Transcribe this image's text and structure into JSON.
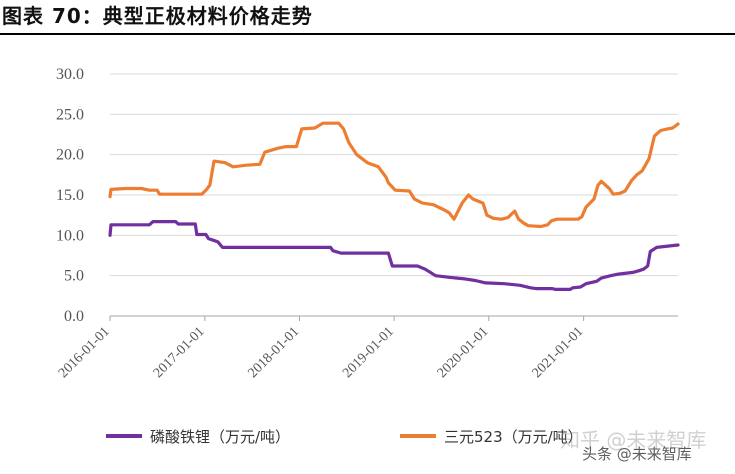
{
  "figure": {
    "title": "图表 70：典型正极材料价格走势"
  },
  "watermark": {
    "line1": "知乎 @未来智库",
    "line2": "头条 @未来智库"
  },
  "chart_data": {
    "type": "line",
    "title": "图表 70：典型正极材料价格走势",
    "xlabel": "",
    "ylabel": "",
    "x_type": "date",
    "xlim": [
      "2016-01-01",
      "2021-12-31"
    ],
    "ylim": [
      0,
      30
    ],
    "y_ticks": [
      "0.0",
      "5.0",
      "10.0",
      "15.0",
      "20.0",
      "25.0",
      "30.0"
    ],
    "x_ticks": [
      "2016-01-01",
      "2017-01-01",
      "2018-01-01",
      "2019-01-01",
      "2020-01-01",
      "2021-01-01"
    ],
    "grid": "horizontal",
    "legend": "bottom",
    "series": [
      {
        "name": "磷酸铁锂（万元/吨）",
        "color": "#7030a0",
        "points": [
          [
            "2016-01-01",
            10.0
          ],
          [
            "2016-01-05",
            11.3
          ],
          [
            "2016-06-01",
            11.3
          ],
          [
            "2016-06-15",
            11.7
          ],
          [
            "2016-09-10",
            11.7
          ],
          [
            "2016-09-20",
            11.4
          ],
          [
            "2016-11-25",
            11.4
          ],
          [
            "2016-12-01",
            10.1
          ],
          [
            "2017-01-05",
            10.1
          ],
          [
            "2017-01-15",
            9.6
          ],
          [
            "2017-02-20",
            9.2
          ],
          [
            "2017-03-10",
            8.5
          ],
          [
            "2018-05-01",
            8.5
          ],
          [
            "2018-05-10",
            8.1
          ],
          [
            "2018-06-10",
            7.8
          ],
          [
            "2018-12-10",
            7.8
          ],
          [
            "2018-12-25",
            6.2
          ],
          [
            "2019-04-01",
            6.2
          ],
          [
            "2019-05-01",
            5.8
          ],
          [
            "2019-06-10",
            5.0
          ],
          [
            "2019-08-01",
            4.8
          ],
          [
            "2019-09-01",
            4.7
          ],
          [
            "2019-10-01",
            4.6
          ],
          [
            "2019-11-10",
            4.4
          ],
          [
            "2019-12-20",
            4.1
          ],
          [
            "2020-03-01",
            4.0
          ],
          [
            "2020-05-01",
            3.8
          ],
          [
            "2020-06-10",
            3.5
          ],
          [
            "2020-07-01",
            3.4
          ],
          [
            "2020-09-01",
            3.4
          ],
          [
            "2020-09-15",
            3.3
          ],
          [
            "2020-11-10",
            3.3
          ],
          [
            "2020-11-20",
            3.5
          ],
          [
            "2020-12-20",
            3.6
          ],
          [
            "2021-01-10",
            4.0
          ],
          [
            "2021-02-20",
            4.3
          ],
          [
            "2021-03-10",
            4.7
          ],
          [
            "2021-04-15",
            5.0
          ],
          [
            "2021-05-15",
            5.2
          ],
          [
            "2021-07-10",
            5.4
          ],
          [
            "2021-08-01",
            5.6
          ],
          [
            "2021-08-20",
            5.8
          ],
          [
            "2021-09-05",
            6.2
          ],
          [
            "2021-09-15",
            8.0
          ],
          [
            "2021-10-10",
            8.5
          ],
          [
            "2021-12-31",
            8.8
          ]
        ]
      },
      {
        "name": "三元523（万元/吨）",
        "color": "#ed7d31",
        "points": [
          [
            "2016-01-01",
            14.8
          ],
          [
            "2016-01-05",
            15.7
          ],
          [
            "2016-03-01",
            15.8
          ],
          [
            "2016-05-01",
            15.8
          ],
          [
            "2016-06-01",
            15.6
          ],
          [
            "2016-07-01",
            15.6
          ],
          [
            "2016-07-10",
            15.1
          ],
          [
            "2016-12-20",
            15.1
          ],
          [
            "2017-01-05",
            15.6
          ],
          [
            "2017-01-20",
            16.2
          ],
          [
            "2017-02-05",
            19.2
          ],
          [
            "2017-03-20",
            19.0
          ],
          [
            "2017-04-20",
            18.5
          ],
          [
            "2017-06-10",
            18.7
          ],
          [
            "2017-08-01",
            18.8
          ],
          [
            "2017-08-20",
            20.3
          ],
          [
            "2017-10-10",
            20.8
          ],
          [
            "2017-11-10",
            21.0
          ],
          [
            "2017-12-20",
            21.0
          ],
          [
            "2018-01-10",
            23.2
          ],
          [
            "2018-03-01",
            23.3
          ],
          [
            "2018-04-01",
            23.9
          ],
          [
            "2018-06-01",
            23.9
          ],
          [
            "2018-06-20",
            23.2
          ],
          [
            "2018-07-10",
            21.5
          ],
          [
            "2018-08-10",
            20.0
          ],
          [
            "2018-09-20",
            19.0
          ],
          [
            "2018-11-01",
            18.5
          ],
          [
            "2018-12-01",
            17.2
          ],
          [
            "2018-12-10",
            16.5
          ],
          [
            "2019-01-05",
            15.6
          ],
          [
            "2019-03-01",
            15.5
          ],
          [
            "2019-03-20",
            14.5
          ],
          [
            "2019-04-20",
            14.0
          ],
          [
            "2019-06-01",
            13.8
          ],
          [
            "2019-07-10",
            13.2
          ],
          [
            "2019-08-01",
            12.8
          ],
          [
            "2019-08-20",
            12.0
          ],
          [
            "2019-09-20",
            14.0
          ],
          [
            "2019-10-15",
            15.0
          ],
          [
            "2019-11-01",
            14.5
          ],
          [
            "2019-12-10",
            14.0
          ],
          [
            "2019-12-25",
            12.5
          ],
          [
            "2020-01-20",
            12.1
          ],
          [
            "2020-02-20",
            12.0
          ],
          [
            "2020-03-15",
            12.2
          ],
          [
            "2020-04-10",
            13.0
          ],
          [
            "2020-04-25",
            12.0
          ],
          [
            "2020-05-15",
            11.5
          ],
          [
            "2020-06-01",
            11.2
          ],
          [
            "2020-07-20",
            11.1
          ],
          [
            "2020-08-15",
            11.3
          ],
          [
            "2020-08-30",
            11.8
          ],
          [
            "2020-09-20",
            12.0
          ],
          [
            "2020-12-10",
            12.0
          ],
          [
            "2020-12-25",
            12.3
          ],
          [
            "2021-01-10",
            13.5
          ],
          [
            "2021-02-10",
            14.5
          ],
          [
            "2021-02-25",
            16.2
          ],
          [
            "2021-03-10",
            16.7
          ],
          [
            "2021-04-10",
            15.8
          ],
          [
            "2021-04-25",
            15.1
          ],
          [
            "2021-05-20",
            15.2
          ],
          [
            "2021-06-10",
            15.5
          ],
          [
            "2021-07-05",
            16.8
          ],
          [
            "2021-07-25",
            17.5
          ],
          [
            "2021-08-15",
            18.0
          ],
          [
            "2021-09-10",
            19.5
          ],
          [
            "2021-10-01",
            22.3
          ],
          [
            "2021-10-25",
            23.0
          ],
          [
            "2021-11-20",
            23.2
          ],
          [
            "2021-12-10",
            23.3
          ],
          [
            "2021-12-31",
            23.8
          ]
        ]
      }
    ]
  }
}
